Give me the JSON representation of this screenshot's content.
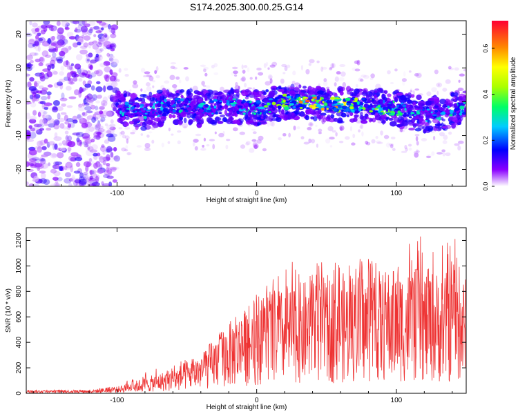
{
  "title": "S174.2025.300.00.25.G14",
  "chart_data": [
    {
      "type": "heatmap",
      "xlabel": "Height of straight line (km)",
      "ylabel": "Frequency (Hz)",
      "xlim": [
        -165,
        150
      ],
      "ylim": [
        -25,
        24
      ],
      "xticks": [
        -100,
        0,
        100
      ],
      "yticks": [
        -20,
        -10,
        0,
        10,
        20
      ],
      "colorbar": {
        "label": "Normalized spectral amplitude",
        "range": [
          0,
          0.72
        ],
        "ticks": [
          0.0,
          0.2,
          0.4,
          0.6
        ]
      },
      "ridge": {
        "description_points_x": [
          -100,
          -80,
          -60,
          -40,
          -20,
          0,
          20,
          40,
          60,
          80,
          100,
          120,
          145
        ],
        "center_freq": [
          -2,
          -3,
          -1,
          -2,
          -1,
          -2,
          0,
          0,
          -1,
          -1,
          -2,
          -4,
          -2
        ],
        "peak_amplitude": [
          0.3,
          0.3,
          0.35,
          0.3,
          0.3,
          0.35,
          0.6,
          0.7,
          0.65,
          0.45,
          0.4,
          0.3,
          0.35
        ]
      }
    },
    {
      "type": "line",
      "xlabel": "Height of straight line (km)",
      "ylabel": "SNR (10 * v/v)",
      "xlim": [
        -165,
        150
      ],
      "ylim": [
        0,
        1300
      ],
      "xticks": [
        -100,
        0,
        100
      ],
      "yticks": [
        0,
        200,
        400,
        600,
        800,
        1000,
        1200
      ],
      "color": "#ee3333",
      "envelope": {
        "x": [
          -165,
          -120,
          -100,
          -80,
          -60,
          -40,
          -20,
          0,
          20,
          40,
          60,
          80,
          100,
          120,
          140,
          150
        ],
        "mean": [
          15,
          15,
          30,
          70,
          110,
          180,
          320,
          420,
          470,
          520,
          540,
          550,
          560,
          560,
          540,
          520
        ],
        "max": [
          25,
          30,
          60,
          170,
          240,
          290,
          600,
          790,
          1010,
          1100,
          1020,
          1080,
          1150,
          1250,
          1290,
          1100
        ]
      }
    }
  ]
}
